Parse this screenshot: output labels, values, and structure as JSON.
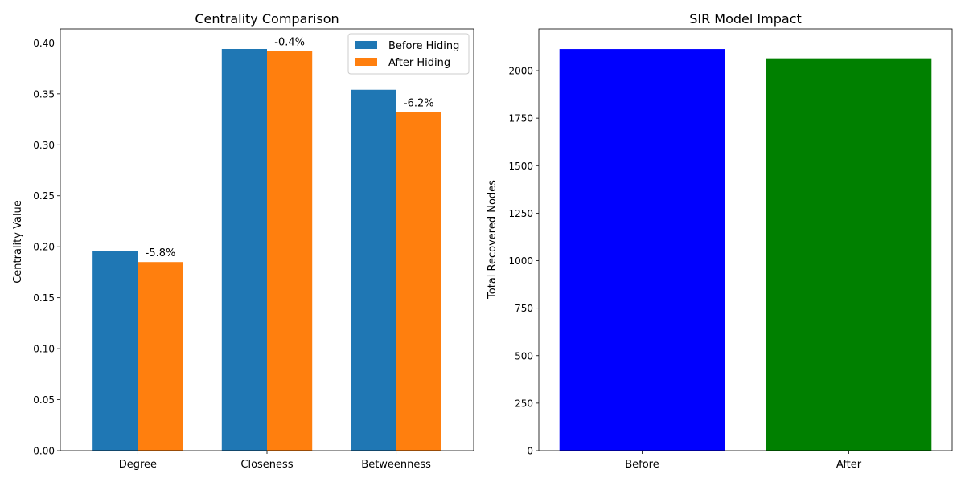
{
  "chart_data": [
    {
      "type": "bar",
      "title": "Centrality Comparison",
      "xlabel": "",
      "ylabel": "Centrality Value",
      "categories": [
        "Degree",
        "Closeness",
        "Betweenness"
      ],
      "series": [
        {
          "name": "Before Hiding",
          "color": "#1f77b4",
          "values": [
            0.196,
            0.394,
            0.354
          ]
        },
        {
          "name": "After Hiding",
          "color": "#ff7f0e",
          "values": [
            0.185,
            0.392,
            0.332
          ]
        }
      ],
      "annotations": [
        "-5.8%",
        "-0.4%",
        "-6.2%"
      ],
      "ylim": [
        0,
        0.4137
      ],
      "yticks": [
        0.0,
        0.05,
        0.1,
        0.15,
        0.2,
        0.25,
        0.3,
        0.35,
        0.4
      ],
      "ytick_labels": [
        "0.00",
        "0.05",
        "0.10",
        "0.15",
        "0.20",
        "0.25",
        "0.30",
        "0.35",
        "0.40"
      ],
      "grid": false,
      "legend_position": "top-right"
    },
    {
      "type": "bar",
      "title": "SIR Model Impact",
      "xlabel": "",
      "ylabel": "Total Recovered Nodes",
      "categories": [
        "Before",
        "After"
      ],
      "values": [
        2114,
        2065
      ],
      "colors": [
        "#0000ff",
        "#008000"
      ],
      "ylim": [
        0,
        2220
      ],
      "yticks": [
        0,
        250,
        500,
        750,
        1000,
        1250,
        1500,
        1750,
        2000
      ],
      "ytick_labels": [
        "0",
        "250",
        "500",
        "750",
        "1000",
        "1250",
        "1500",
        "1750",
        "2000"
      ],
      "grid": false
    }
  ]
}
